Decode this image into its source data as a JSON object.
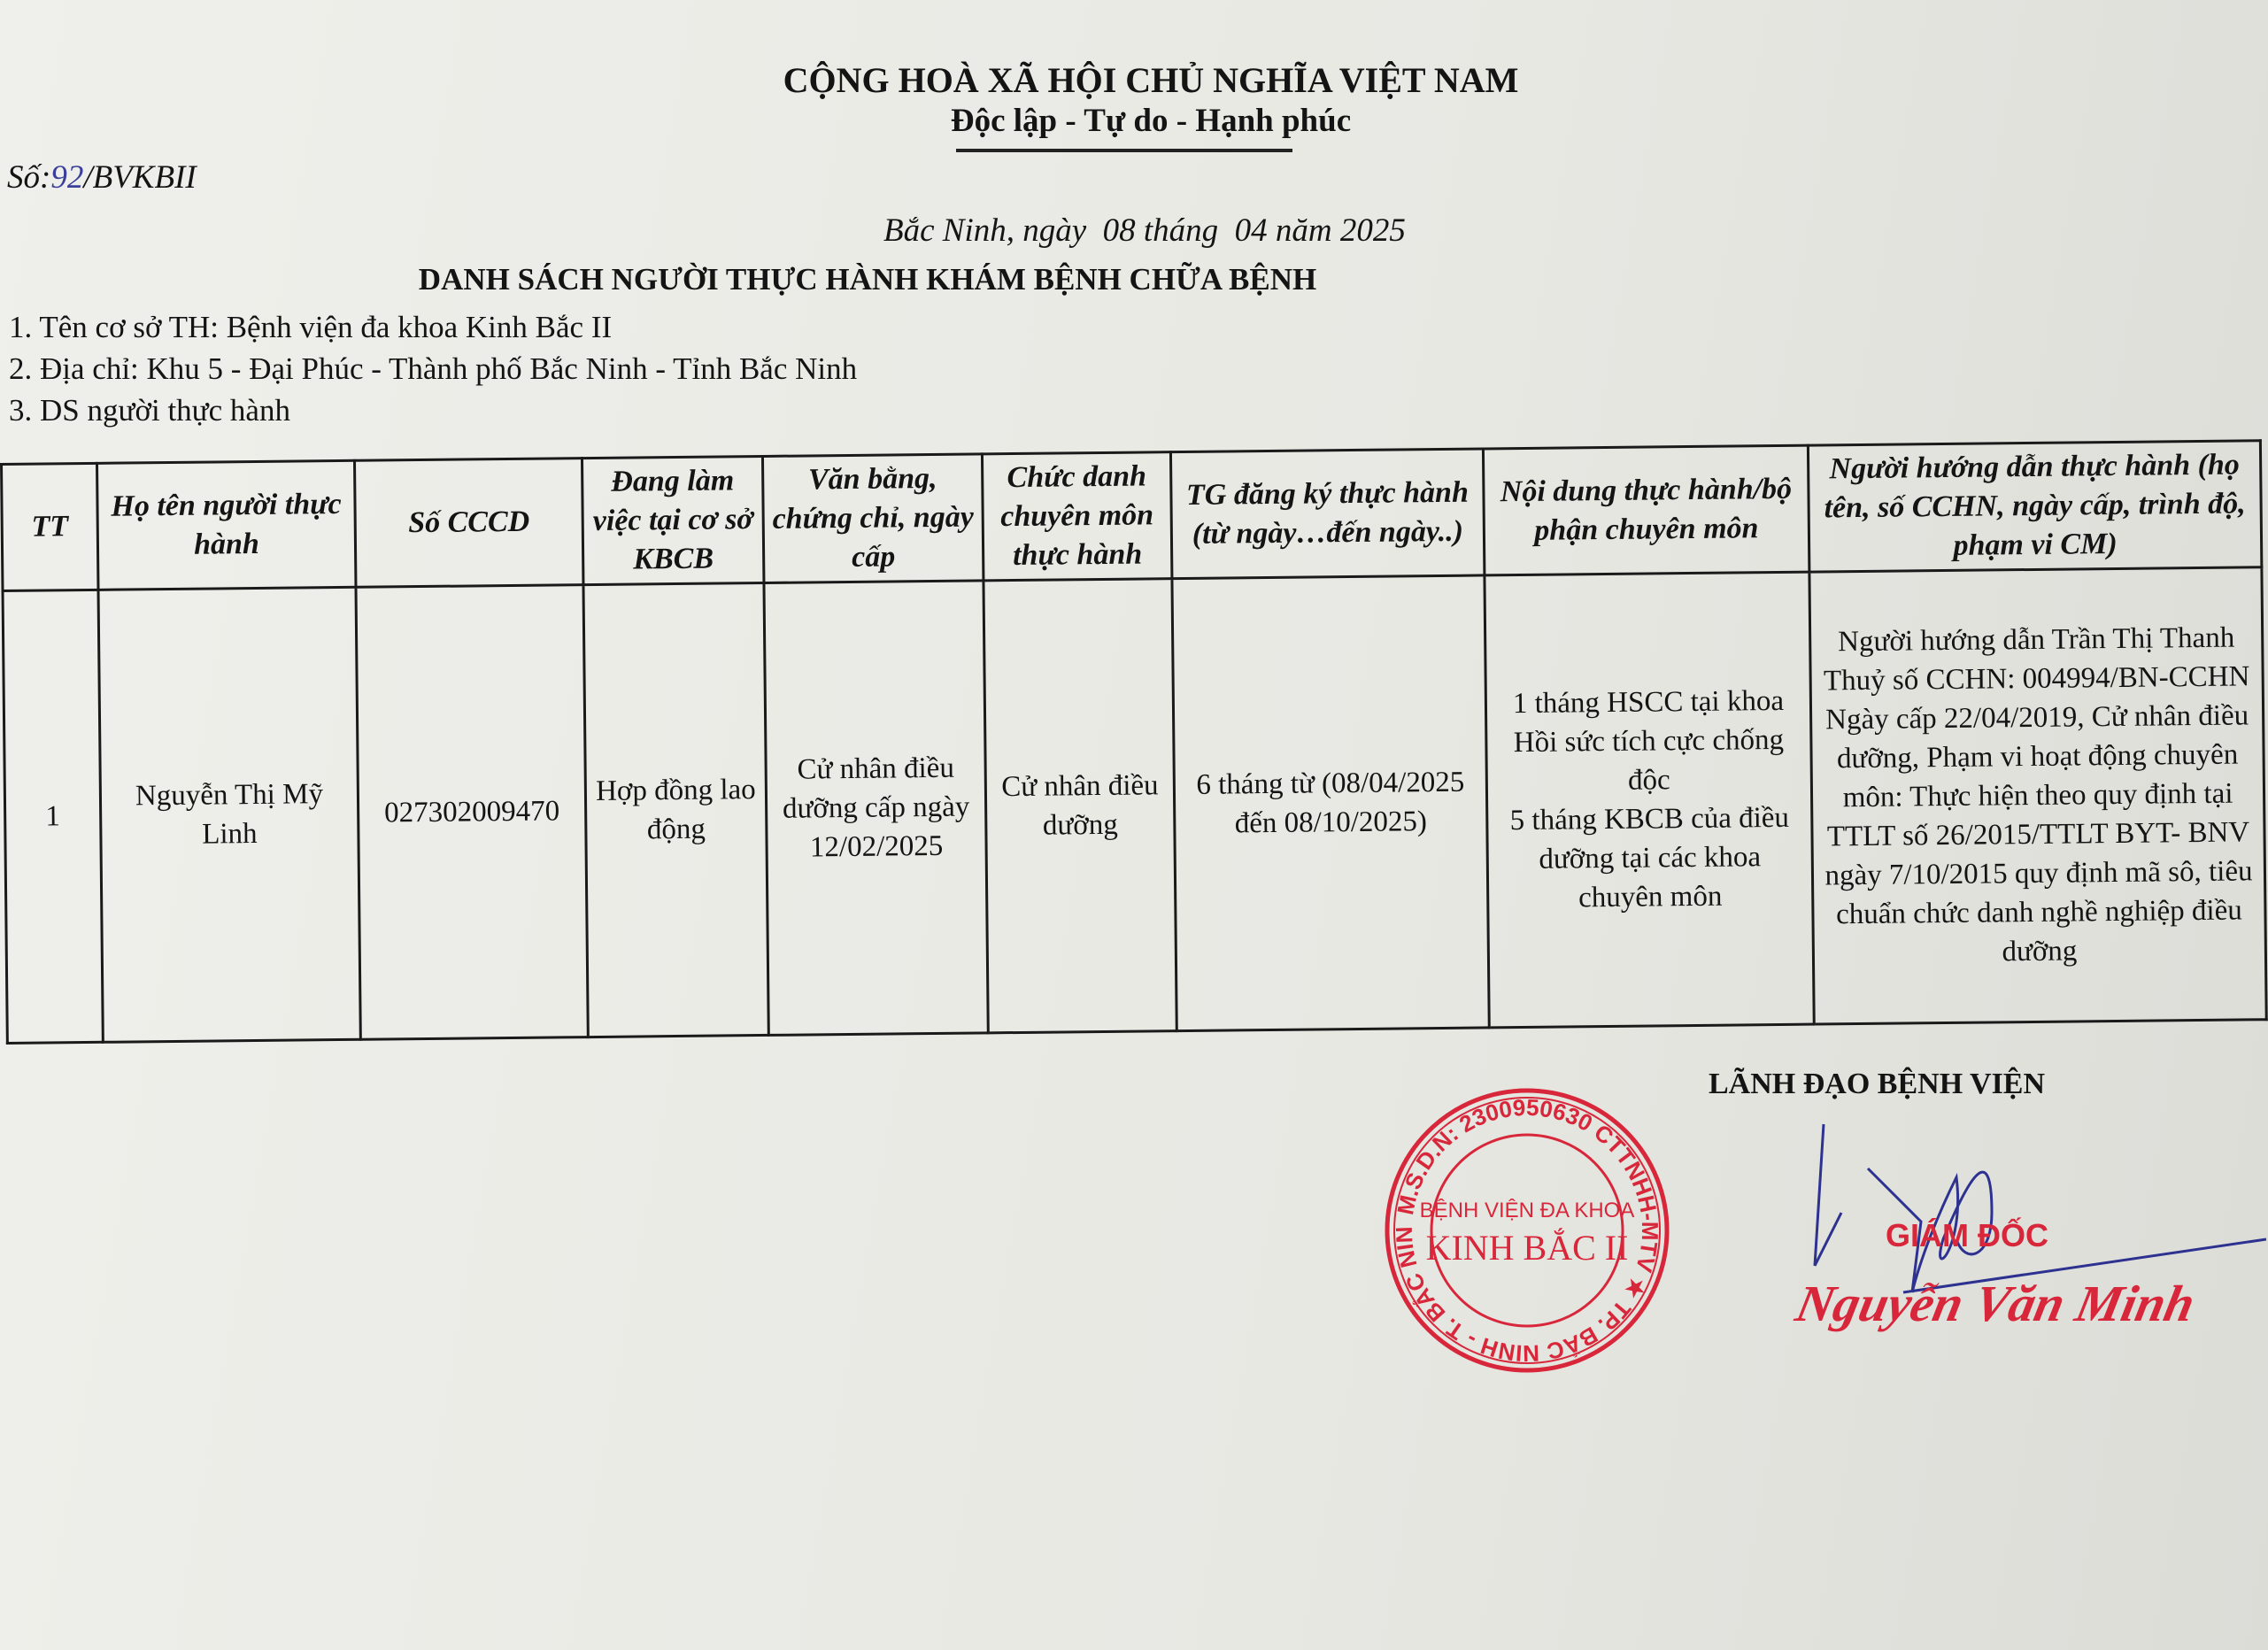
{
  "header": {
    "nation": "CỘNG HOÀ XÃ HỘI CHỦ NGHĨA VIỆT NAM",
    "motto": "Độc lập - Tự do - Hạnh phúc",
    "doc_number_prefix": "Số:",
    "doc_number_handwritten": "92",
    "doc_number_suffix": "/BVKBII",
    "date_line": "Bắc Ninh, ngày  08 tháng  04 năm 2025",
    "title": "DANH SÁCH NGƯỜI THỰC HÀNH KHÁM BỆNH CHỮA BỆNH"
  },
  "info": [
    "1. Tên cơ sở TH: Bệnh viện đa khoa Kinh Bắc II",
    "2. Địa chỉ: Khu 5 - Đại Phúc - Thành phố Bắc Ninh - Tỉnh Bắc Ninh",
    "3. DS người thực hành"
  ],
  "table": {
    "headers": [
      "TT",
      "Họ tên người thực hành",
      "Số CCCD",
      "Đang làm việc tại cơ sở KBCB",
      "Văn bằng, chứng chỉ, ngày cấp",
      "Chức danh chuyên môn thực hành",
      "TG đăng ký thực hành (từ ngày…đến ngày..)",
      "Nội dung thực hành/bộ phận chuyên môn",
      "Người hướng dẫn thực hành (họ tên, số CCHN, ngày cấp, trình độ, phạm vi CM)"
    ],
    "rows": [
      [
        "1",
        "Nguyễn Thị Mỹ Linh",
        "027302009470",
        "Hợp đồng lao động",
        "Cử nhân điều dưỡng cấp ngày 12/02/2025",
        "Cử nhân điều dưỡng",
        "6 tháng từ (08/04/2025 đến 08/10/2025)",
        "1 tháng HSCC tại khoa Hồi sức tích cực chống độc\n5 tháng KBCB của điều dưỡng tại các khoa chuyên môn",
        "Người hướng dẫn Trần Thị Thanh Thuỷ số CCHN: 004994/BN-CCHN\nNgày cấp 22/04/2019, Cử nhân điều dưỡng, Phạm vi hoạt động chuyên môn: Thực hiện theo quy định tại TTLT số 26/2015/TTLT BYT- BNV\nngày 7/10/2015 quy định mã sô, tiêu chuẩn chức danh nghề nghiệp điều dưỡng"
      ]
    ]
  },
  "signature": {
    "leader": "LÃNH ĐẠO BỆNH VIỆN",
    "role": "GIÁM ĐỐC",
    "name": "Nguyễn Văn Minh",
    "stamp_text": "M.S.D.N: 2300950630 CTTNHH-MTV · BỆNH VIỆN ĐA KHOA KINH BẮC II · TP. BẮC NINH - T. BẮC NINH"
  },
  "colors": {
    "stamp": "#d8273a",
    "ink": "#2d3190"
  }
}
